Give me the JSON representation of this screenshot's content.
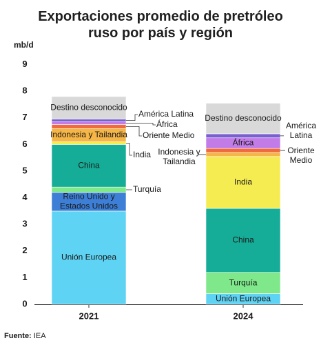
{
  "title_line1": "Exportaciones promedio de pretróleo",
  "title_line2": "ruso por país y región",
  "unit_label": "mb/d",
  "source_label": "Fuente:",
  "source_value": "IEA",
  "chart_data": {
    "type": "bar",
    "stacked": true,
    "categories": [
      "2021",
      "2024"
    ],
    "ylim": [
      0,
      9
    ],
    "yticks": [
      0,
      1,
      2,
      3,
      4,
      5,
      6,
      7,
      8,
      9
    ],
    "ylabel": "mb/d",
    "series": [
      {
        "name": "Unión Europea",
        "label_2021": "Unión Europea",
        "label_2024": "Unión Europea",
        "values": [
          3.5,
          0.4
        ],
        "color": "#5fd3f3"
      },
      {
        "name": "Reino Unido y Estados Unidos",
        "label_2021": [
          "Reino Unido y",
          "Estados Unidos"
        ],
        "values": [
          0.7,
          0
        ],
        "color": "#3d7fd6"
      },
      {
        "name": "Turquía",
        "label_2021": "Turquía",
        "label_2024": "Turquía",
        "values": [
          0.2,
          0.8
        ],
        "color": "#7ee88a"
      },
      {
        "name": "China",
        "label_2021": "China",
        "label_2024": "China",
        "values": [
          1.6,
          2.4
        ],
        "color": "#16ad98"
      },
      {
        "name": "India",
        "label_2021": "India",
        "label_2024": "India",
        "values": [
          0.1,
          1.95
        ],
        "color": "#f5ec52"
      },
      {
        "name": "Indonesia y Tailandia",
        "label_2021": "Indonesia y Tailandia",
        "label_2024": [
          "Indonesia y",
          "Tailandia"
        ],
        "values": [
          0.5,
          0.15
        ],
        "color": "#f6b646"
      },
      {
        "name": "Oriente Medio",
        "label_2021": "Oriente Medio",
        "label_2024": [
          "Oriente",
          "Medio"
        ],
        "values": [
          0.15,
          0.15
        ],
        "color": "#f06a3c"
      },
      {
        "name": "África",
        "label_2021": "África",
        "label_2024": "África",
        "values": [
          0.1,
          0.4
        ],
        "color": "#c27ce8"
      },
      {
        "name": "América Latina",
        "label_2021": "América Latina",
        "label_2024": [
          "América",
          "Latina"
        ],
        "values": [
          0.1,
          0.15
        ],
        "color": "#7a5fd0"
      },
      {
        "name": "Destino desconocido",
        "label_2021": "Destino desconocido",
        "label_2024": "Destino desconocido",
        "values": [
          0.85,
          1.15
        ],
        "color": "#d9d9d9"
      }
    ]
  }
}
